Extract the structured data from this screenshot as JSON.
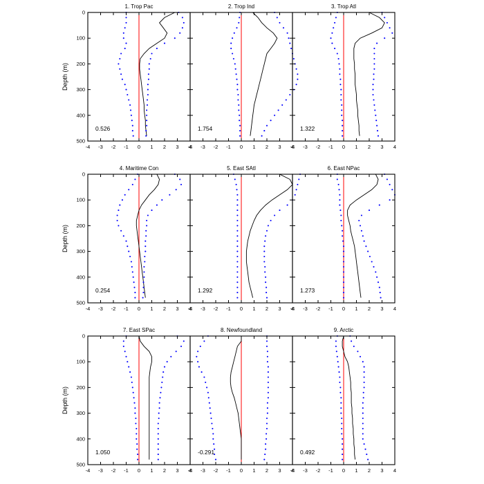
{
  "chart_data": {
    "type": "line",
    "ylabel": "Depth (m)",
    "x_ticks": [
      "-4",
      "-3",
      "-2",
      "-1",
      "0",
      "1",
      "2",
      "3",
      "4"
    ],
    "y_ticks": [
      "0",
      "100",
      "200",
      "300",
      "400",
      "500"
    ],
    "xlim": [
      -4,
      4
    ],
    "ylim": [
      500,
      0
    ],
    "y_reversed": true,
    "colors": {
      "bounds": "#0000ff",
      "mean": "#000000",
      "zero_line": "#ff0000"
    },
    "depths": [
      0,
      20,
      40,
      60,
      80,
      100,
      120,
      140,
      160,
      180,
      200,
      220,
      240,
      260,
      280,
      300,
      320,
      340,
      360,
      380,
      400,
      420,
      440,
      460,
      480
    ],
    "panels": [
      {
        "title": "1. Trop Pac",
        "value": "0.526",
        "mean": [
          2.8,
          2.0,
          1.6,
          1.9,
          2.2,
          2.0,
          1.4,
          0.8,
          0.4,
          0.1,
          0.05,
          0.05,
          0.1,
          0.15,
          0.2,
          0.25,
          0.3,
          0.35,
          0.4,
          0.4,
          0.45,
          0.5,
          0.5,
          0.55,
          0.6
        ],
        "lower": [
          -1.0,
          -1.0,
          -1.0,
          -1.1,
          -1.2,
          -1.2,
          -1.0,
          -1.1,
          -1.4,
          -1.5,
          -1.6,
          -1.5,
          -1.4,
          -1.3,
          -1.1,
          -1.0,
          -0.9,
          -0.8,
          -0.7,
          -0.65,
          -0.6,
          -0.55,
          -0.5,
          -0.5,
          -0.45
        ],
        "upper": [
          3.1,
          3.4,
          3.5,
          3.4,
          3.2,
          2.8,
          2.0,
          1.4,
          1.0,
          0.9,
          0.8,
          0.8,
          0.75,
          0.75,
          0.7,
          0.7,
          0.7,
          0.65,
          0.65,
          0.6,
          0.6,
          0.6,
          0.6,
          0.55,
          0.55
        ]
      },
      {
        "title": "2. Trop Ind",
        "value": "1.754",
        "mean": [
          0.9,
          1.3,
          1.6,
          2.0,
          2.5,
          2.8,
          2.6,
          2.3,
          2.0,
          1.9,
          1.8,
          1.7,
          1.6,
          1.5,
          1.4,
          1.3,
          1.2,
          1.1,
          1.0,
          0.95,
          0.9,
          0.85,
          0.8,
          0.75,
          0.7
        ],
        "lower": [
          -0.1,
          -0.15,
          -0.2,
          -0.35,
          -0.55,
          -0.7,
          -0.8,
          -0.8,
          -0.7,
          -0.6,
          -0.5,
          -0.45,
          -0.4,
          -0.35,
          -0.3,
          -0.3,
          -0.25,
          -0.25,
          -0.2,
          -0.2,
          -0.15,
          -0.15,
          -0.1,
          -0.1,
          -0.1
        ],
        "upper": [
          2.6,
          2.8,
          3.0,
          3.3,
          3.6,
          3.7,
          3.8,
          3.9,
          4.0,
          4.1,
          4.2,
          4.3,
          4.4,
          4.4,
          4.3,
          4.1,
          3.8,
          3.5,
          3.2,
          2.9,
          2.6,
          2.3,
          2.0,
          1.8,
          1.6
        ]
      },
      {
        "title": "3. Trop Atl",
        "value": "1.322",
        "mean": [
          2.0,
          2.8,
          3.2,
          3.0,
          2.2,
          1.3,
          0.9,
          0.8,
          0.8,
          0.8,
          0.85,
          0.85,
          0.9,
          0.9,
          0.9,
          0.95,
          1.0,
          1.0,
          1.05,
          1.1,
          1.1,
          1.15,
          1.2,
          1.2,
          1.25
        ],
        "lower": [
          -0.5,
          -0.6,
          -0.7,
          -0.8,
          -0.9,
          -1.0,
          -0.9,
          -0.7,
          -0.5,
          -0.4,
          -0.35,
          -0.3,
          -0.3,
          -0.25,
          -0.25,
          -0.2,
          -0.2,
          -0.2,
          -0.15,
          -0.15,
          -0.15,
          -0.1,
          -0.1,
          -0.1,
          -0.1
        ],
        "upper": [
          3.0,
          3.2,
          3.4,
          3.6,
          3.8,
          3.2,
          2.6,
          2.4,
          2.4,
          2.4,
          2.4,
          2.4,
          2.35,
          2.35,
          2.3,
          2.3,
          2.3,
          2.35,
          2.4,
          2.45,
          2.5,
          2.55,
          2.6,
          2.65,
          2.7
        ]
      },
      {
        "title": "4. Maritime Con",
        "value": "0.254",
        "mean": [
          1.4,
          1.6,
          1.5,
          1.2,
          0.8,
          0.5,
          0.2,
          0.0,
          -0.1,
          -0.2,
          -0.2,
          -0.15,
          -0.1,
          -0.05,
          0.0,
          0.05,
          0.1,
          0.15,
          0.2,
          0.25,
          0.3,
          0.35,
          0.4,
          0.45,
          0.5
        ],
        "lower": [
          -0.1,
          -0.3,
          -0.5,
          -0.8,
          -1.1,
          -1.3,
          -1.5,
          -1.6,
          -1.7,
          -1.7,
          -1.6,
          -1.4,
          -1.2,
          -1.0,
          -0.9,
          -0.8,
          -0.7,
          -0.6,
          -0.55,
          -0.5,
          -0.45,
          -0.4,
          -0.35,
          -0.3,
          -0.3
        ],
        "upper": [
          2.8,
          3.2,
          3.3,
          2.9,
          2.4,
          1.8,
          1.4,
          1.0,
          0.7,
          0.6,
          0.6,
          0.55,
          0.55,
          0.5,
          0.5,
          0.5,
          0.45,
          0.45,
          0.4,
          0.4,
          0.4,
          0.35,
          0.35,
          0.35,
          0.3
        ]
      },
      {
        "title": "5. East SAtl",
        "value": "1.292",
        "mean": [
          3.0,
          3.8,
          4.0,
          3.6,
          3.0,
          2.4,
          1.9,
          1.5,
          1.2,
          1.0,
          0.85,
          0.7,
          0.6,
          0.5,
          0.45,
          0.4,
          0.4,
          0.4,
          0.45,
          0.5,
          0.55,
          0.6,
          0.7,
          0.8,
          0.9
        ],
        "lower": [
          -0.6,
          -0.5,
          -0.4,
          -0.35,
          -0.3,
          -0.3,
          -0.3,
          -0.3,
          -0.3,
          -0.3,
          -0.3,
          -0.3,
          -0.3,
          -0.3,
          -0.3,
          -0.3,
          -0.3,
          -0.3,
          -0.3,
          -0.3,
          -0.3,
          -0.3,
          -0.3,
          -0.3,
          -0.3
        ],
        "upper": [
          4.6,
          4.5,
          4.4,
          4.3,
          4.2,
          4.0,
          3.6,
          3.0,
          2.6,
          2.3,
          2.1,
          2.0,
          1.9,
          1.85,
          1.8,
          1.8,
          1.8,
          1.8,
          1.85,
          1.85,
          1.9,
          1.9,
          1.95,
          1.95,
          2.0
        ]
      },
      {
        "title": "6. East NPac",
        "value": "1.273",
        "mean": [
          2.5,
          2.7,
          2.6,
          2.2,
          1.6,
          1.0,
          0.5,
          0.3,
          0.3,
          0.4,
          0.5,
          0.55,
          0.65,
          0.75,
          0.85,
          0.9,
          0.95,
          1.0,
          1.05,
          1.1,
          1.15,
          1.2,
          1.25,
          1.3,
          1.35
        ],
        "lower": [
          -0.5,
          -0.5,
          -0.4,
          -0.35,
          -0.3,
          -0.3,
          -0.3,
          -0.25,
          -0.2,
          -0.2,
          -0.15,
          -0.1,
          -0.1,
          -0.05,
          0.0,
          0.0,
          0.0,
          0.0,
          0.0,
          0.0,
          0.0,
          0.0,
          0.0,
          0.0,
          0.0
        ],
        "upper": [
          3.2,
          3.4,
          3.6,
          3.8,
          4.0,
          3.6,
          2.8,
          2.0,
          1.4,
          1.2,
          1.3,
          1.4,
          1.5,
          1.6,
          1.75,
          1.9,
          2.05,
          2.2,
          2.35,
          2.5,
          2.6,
          2.7,
          2.8,
          2.85,
          2.9
        ]
      },
      {
        "title": "7. East SPac",
        "value": "1.050",
        "mean": [
          0.0,
          0.1,
          0.4,
          0.8,
          1.0,
          1.0,
          0.9,
          0.85,
          0.8,
          0.8,
          0.8,
          0.8,
          0.8,
          0.8,
          0.8,
          0.8,
          0.8,
          0.8,
          0.8,
          0.8,
          0.8,
          0.8,
          0.8,
          0.8,
          0.8
        ],
        "lower": [
          -1.0,
          -1.2,
          -1.2,
          -1.1,
          -1.0,
          -0.9,
          -0.8,
          -0.7,
          -0.6,
          -0.55,
          -0.5,
          -0.45,
          -0.4,
          -0.35,
          -0.3,
          -0.3,
          -0.25,
          -0.25,
          -0.2,
          -0.2,
          -0.2,
          -0.15,
          -0.15,
          -0.1,
          -0.1
        ],
        "upper": [
          3.0,
          3.5,
          3.3,
          2.9,
          2.5,
          2.2,
          2.0,
          1.9,
          1.85,
          1.8,
          1.75,
          1.7,
          1.65,
          1.6,
          1.6,
          1.55,
          1.55,
          1.5,
          1.5,
          1.5,
          1.5,
          1.5,
          1.5,
          1.5,
          1.5
        ]
      },
      {
        "title": "8. Newfoundland",
        "value": "-0.291",
        "mean": [
          0.0,
          0.0,
          -0.3,
          -0.4,
          -0.5,
          -0.6,
          -0.7,
          -0.8,
          -0.85,
          -0.85,
          -0.8,
          -0.7,
          -0.55,
          -0.45,
          -0.35,
          -0.25,
          -0.2,
          -0.15,
          -0.1,
          -0.05,
          0.0,
          0.0,
          0.0,
          0.0,
          0.0
        ],
        "lower": [
          -2.6,
          -2.9,
          -3.2,
          -3.4,
          -3.5,
          -3.4,
          -3.3,
          -3.1,
          -2.9,
          -2.8,
          -2.7,
          -2.6,
          -2.55,
          -2.5,
          -2.45,
          -2.4,
          -2.35,
          -2.3,
          -2.25,
          -2.2,
          -2.2,
          -2.15,
          -2.1,
          -2.1,
          -2.0
        ],
        "upper": [
          2.0,
          2.0,
          2.0,
          2.05,
          2.05,
          2.05,
          2.1,
          2.1,
          2.1,
          2.1,
          2.1,
          2.1,
          2.1,
          2.05,
          2.05,
          2.05,
          2.0,
          2.0,
          2.0,
          1.95,
          1.95,
          1.9,
          1.9,
          1.85,
          1.8
        ]
      },
      {
        "title": "9. Arctic",
        "value": "0.492",
        "mean": [
          0.0,
          -0.1,
          -0.1,
          0.0,
          0.1,
          0.3,
          0.4,
          0.45,
          0.5,
          0.55,
          0.55,
          0.6,
          0.6,
          0.6,
          0.65,
          0.65,
          0.7,
          0.7,
          0.75,
          0.75,
          0.8,
          0.8,
          0.85,
          0.85,
          0.9
        ],
        "lower": [
          -0.5,
          -0.6,
          -0.6,
          -0.55,
          -0.5,
          -0.45,
          -0.4,
          -0.35,
          -0.3,
          -0.3,
          -0.25,
          -0.25,
          -0.2,
          -0.2,
          -0.2,
          -0.2,
          -0.15,
          -0.15,
          -0.15,
          -0.15,
          -0.1,
          -0.1,
          -0.1,
          -0.1,
          -0.1
        ],
        "upper": [
          0.5,
          0.6,
          0.8,
          1.1,
          1.3,
          1.5,
          1.6,
          1.6,
          1.6,
          1.6,
          1.6,
          1.55,
          1.55,
          1.5,
          1.5,
          1.5,
          1.5,
          1.5,
          1.5,
          1.5,
          1.5,
          1.6,
          1.7,
          1.8,
          1.9
        ]
      }
    ]
  }
}
